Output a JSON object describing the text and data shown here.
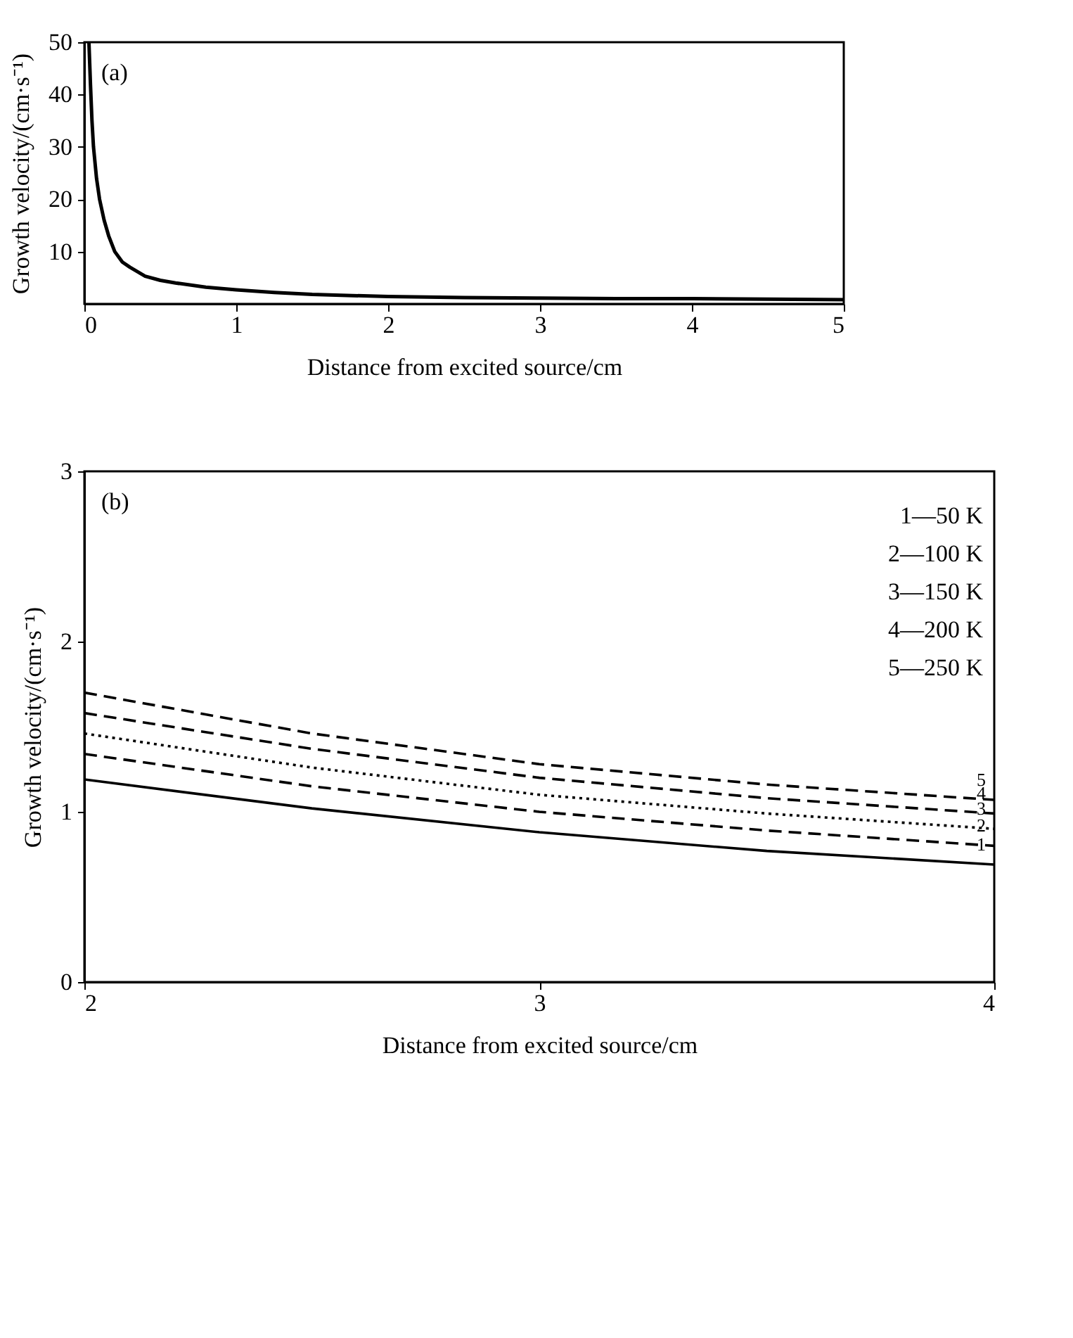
{
  "chart_data": [
    {
      "type": "line",
      "annotations": [
        "(a)"
      ],
      "xlabel": "Distance from excited source/cm",
      "ylabel": "Growth velocity/(cm·s⁻¹)",
      "x": [
        0.03,
        0.04,
        0.05,
        0.06,
        0.08,
        0.1,
        0.13,
        0.16,
        0.2,
        0.25,
        0.3,
        0.4,
        0.5,
        0.6,
        0.8,
        1,
        1.25,
        1.5,
        2,
        2.5,
        3,
        3.5,
        4,
        4.5,
        5
      ],
      "values": [
        50,
        42,
        35,
        30,
        24,
        20,
        16,
        13,
        10,
        8,
        7,
        5.3,
        4.5,
        4,
        3.2,
        2.7,
        2.2,
        1.8,
        1.4,
        1.2,
        1.1,
        1,
        1,
        0.9,
        0.8
      ],
      "color": "#000000",
      "line_style": "solid",
      "xlim": [
        0,
        5
      ],
      "xticks": [
        0,
        1,
        2,
        3,
        4,
        5
      ],
      "ylim": [
        0,
        50
      ],
      "yticks": [
        10,
        20,
        30,
        40,
        50
      ],
      "grid": false,
      "legend": false
    },
    {
      "type": "line",
      "annotations": [
        "(b)",
        "1—50 K",
        "2—100 K",
        "3—150 K",
        "4—200 K",
        "5—250 K"
      ],
      "xlabel": "Distance from excited source/cm",
      "ylabel": "Growth velocity/(cm·s⁻¹)",
      "x": [
        2,
        2.5,
        3,
        3.5,
        4
      ],
      "series": [
        {
          "name": "1",
          "color": "#000000",
          "line_style": "solid",
          "values": [
            1.19,
            1.02,
            0.88,
            0.77,
            0.69
          ]
        },
        {
          "name": "2",
          "color": "#000000",
          "line_style": "dashed",
          "values": [
            1.34,
            1.15,
            1.0,
            0.89,
            0.8
          ]
        },
        {
          "name": "3",
          "color": "#000000",
          "line_style": "dotted",
          "values": [
            1.46,
            1.26,
            1.1,
            0.99,
            0.9
          ]
        },
        {
          "name": "4",
          "color": "#000000",
          "line_style": "dashed",
          "values": [
            1.58,
            1.37,
            1.2,
            1.08,
            0.99
          ]
        },
        {
          "name": "5",
          "color": "#000000",
          "line_style": "dashed",
          "values": [
            1.7,
            1.46,
            1.28,
            1.16,
            1.07
          ]
        }
      ],
      "xlim": [
        2,
        4
      ],
      "xticks": [
        2,
        3,
        4
      ],
      "ylim": [
        0,
        3
      ],
      "yticks": [
        0,
        1,
        2,
        3
      ],
      "grid": false,
      "legend": false
    }
  ]
}
